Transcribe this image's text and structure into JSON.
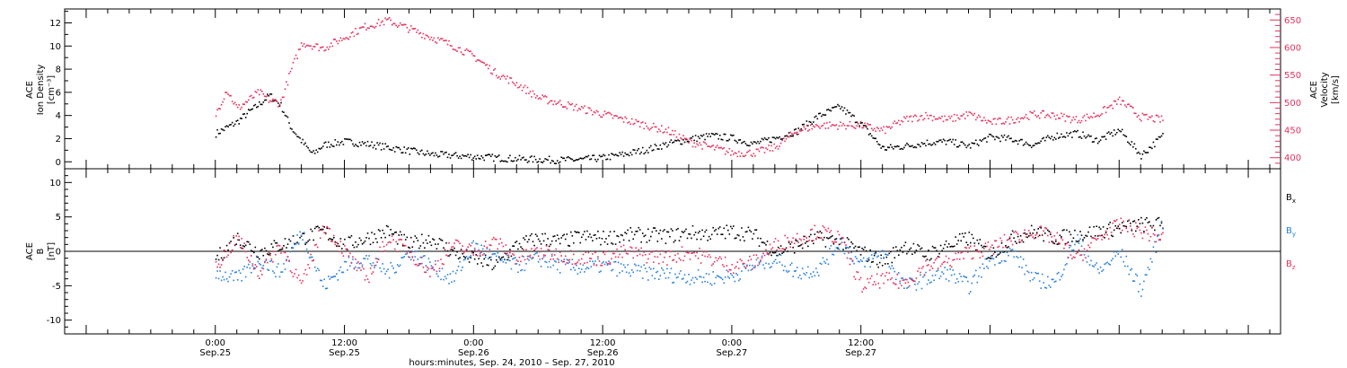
{
  "chart_data": [
    {
      "type": "scatter",
      "panel": "top",
      "ylabel_left": [
        "ACE",
        "Ion Density",
        "[cm⁻³]"
      ],
      "ylabel_right": [
        "ACE",
        "Velocity",
        "[km/s]"
      ],
      "ylim_left": [
        -0.6,
        13.2
      ],
      "ylim_right": [
        380,
        670
      ],
      "yticks_left": [
        0,
        2,
        4,
        6,
        8,
        10,
        12
      ],
      "yticks_right": [
        400,
        450,
        500,
        550,
        600,
        650
      ],
      "colors": {
        "density": "#000000",
        "velocity": "#e8305c"
      },
      "series": [
        {
          "axis": "left",
          "color": "#000000",
          "x": [
            0,
            1,
            2,
            3,
            4,
            5,
            6,
            7,
            8,
            9,
            10,
            12,
            14,
            16,
            20,
            24,
            28,
            32,
            34,
            36,
            38,
            40,
            42,
            44,
            46,
            48,
            50,
            52,
            54,
            56,
            58,
            60,
            62,
            64,
            66,
            68,
            70,
            72,
            74,
            76,
            78,
            80,
            82,
            84,
            86,
            88
          ],
          "y": [
            2.5,
            3.0,
            3.5,
            4.3,
            5.0,
            5.8,
            5.0,
            3.0,
            1.8,
            0.7,
            1.5,
            1.8,
            1.6,
            1.3,
            0.7,
            0.5,
            0.3,
            0.2,
            0.25,
            0.4,
            0.7,
            1.1,
            1.6,
            2.0,
            2.3,
            2.1,
            1.6,
            2.1,
            2.7,
            4.0,
            4.8,
            3.3,
            1.2,
            1.4,
            1.7,
            1.8,
            1.4,
            2.2,
            2.0,
            1.5,
            2.3,
            2.5,
            1.9,
            2.8,
            0.6,
            2.3
          ]
        },
        {
          "axis": "right",
          "color": "#e8305c",
          "x": [
            0,
            1,
            2,
            3,
            4,
            5,
            6,
            7,
            8,
            10,
            12,
            14,
            16,
            18,
            20,
            22,
            24,
            26,
            28,
            30,
            32,
            34,
            36,
            38,
            40,
            42,
            44,
            46,
            48,
            50,
            52,
            54,
            56,
            58,
            60,
            62,
            64,
            66,
            68,
            70,
            72,
            74,
            76,
            78,
            80,
            82,
            84,
            86,
            88
          ],
          "y": [
            480,
            525,
            490,
            505,
            520,
            505,
            500,
            560,
            610,
            600,
            620,
            640,
            650,
            635,
            620,
            605,
            585,
            555,
            535,
            510,
            500,
            490,
            480,
            470,
            460,
            450,
            430,
            420,
            410,
            410,
            420,
            450,
            460,
            460,
            460,
            450,
            470,
            478,
            470,
            480,
            465,
            470,
            480,
            478,
            470,
            480,
            505,
            475,
            470
          ]
        }
      ]
    },
    {
      "type": "scatter",
      "panel": "bottom",
      "ylabel": [
        "ACE",
        "B",
        "[nT]"
      ],
      "ylim": [
        -12,
        12
      ],
      "yticks": [
        -10,
        -5,
        0,
        5,
        10
      ],
      "legend": {
        "placement": "right",
        "entries": [
          "Bx",
          "By",
          "Bz"
        ]
      },
      "series": [
        {
          "name": "Bx",
          "color": "#000000",
          "x": [
            0,
            2,
            4,
            6,
            8,
            10,
            12,
            14,
            16,
            18,
            20,
            22,
            24,
            26,
            28,
            30,
            32,
            34,
            36,
            38,
            40,
            42,
            44,
            46,
            48,
            50,
            52,
            54,
            56,
            58,
            60,
            62,
            64,
            66,
            68,
            70,
            72,
            74,
            76,
            78,
            80,
            82,
            84,
            86,
            88
          ],
          "y": [
            -1,
            2,
            0,
            1,
            2,
            3,
            1,
            2,
            3,
            1,
            2,
            0,
            -1,
            -2,
            1,
            2,
            1.5,
            2.2,
            2.0,
            2.4,
            2.5,
            2.3,
            2.8,
            2.6,
            3.0,
            2.5,
            0,
            1.0,
            2.0,
            1.5,
            0,
            -1.5,
            1.0,
            -0.5,
            1.0,
            2.0,
            -0.5,
            2.0,
            3.0,
            2.0,
            2.5,
            3.0,
            3.5,
            4.0,
            4.0
          ]
        },
        {
          "name": "By",
          "color": "#2880e0",
          "x": [
            0,
            2,
            4,
            6,
            8,
            10,
            12,
            14,
            16,
            18,
            20,
            22,
            24,
            26,
            28,
            30,
            32,
            34,
            36,
            38,
            40,
            42,
            44,
            46,
            48,
            50,
            52,
            54,
            56,
            58,
            60,
            62,
            64,
            66,
            68,
            70,
            72,
            74,
            76,
            78,
            80,
            82,
            84,
            86,
            88
          ],
          "y": [
            -3,
            -4,
            -1,
            -3,
            3,
            -5,
            -2,
            -1,
            -3,
            0,
            -2,
            -4,
            1,
            -1,
            -2,
            -1,
            -2.0,
            -2.3,
            -2.0,
            -2.6,
            -3.0,
            -3.3,
            -3.6,
            -3.8,
            -3.5,
            -2.0,
            -1.0,
            -3.0,
            -2.5,
            1.5,
            -2.0,
            0,
            -5.0,
            -4.0,
            -3.0,
            -5.0,
            -1.0,
            0,
            -4.0,
            -4.5,
            2.0,
            -3.0,
            0,
            -5.5,
            4.0
          ]
        },
        {
          "name": "Bz",
          "color": "#e8305c",
          "x": [
            0,
            2,
            4,
            6,
            8,
            10,
            12,
            14,
            16,
            18,
            20,
            22,
            24,
            26,
            28,
            30,
            32,
            34,
            36,
            38,
            40,
            42,
            44,
            46,
            48,
            50,
            52,
            54,
            56,
            58,
            60,
            62,
            64,
            66,
            68,
            70,
            72,
            74,
            76,
            78,
            80,
            82,
            84,
            86,
            88
          ],
          "y": [
            -2,
            2,
            -3,
            1,
            -5,
            4,
            0,
            -4,
            2,
            0,
            -3,
            1,
            0,
            1.5,
            -1.0,
            0,
            -0.5,
            -0.8,
            -1.0,
            0,
            -0.5,
            -0.8,
            0,
            -1.0,
            -2.0,
            -1.5,
            1.0,
            2.0,
            3.0,
            2.0,
            -5.0,
            -4.0,
            -4.5,
            -2.0,
            -1.5,
            0,
            0.5,
            2.0,
            3.0,
            2.0,
            -1.0,
            2.0,
            4.0,
            3.0,
            2.0
          ]
        }
      ]
    }
  ],
  "x_axis": {
    "xlim_hours": [
      -14,
      99
    ],
    "ticks": [
      {
        "hours": 0,
        "time": "0:00",
        "date": "Sep.25"
      },
      {
        "hours": 12,
        "time": "12:00",
        "date": "Sep.25"
      },
      {
        "hours": 24,
        "time": "0:00",
        "date": "Sep.26"
      },
      {
        "hours": 36,
        "time": "12:00",
        "date": "Sep.26"
      },
      {
        "hours": 48,
        "time": "0:00",
        "date": "Sep.27"
      },
      {
        "hours": 60,
        "time": "12:00",
        "date": "Sep.27"
      }
    ],
    "title": "hours:minutes, Sep. 24, 2010 – Sep. 27, 2010"
  }
}
